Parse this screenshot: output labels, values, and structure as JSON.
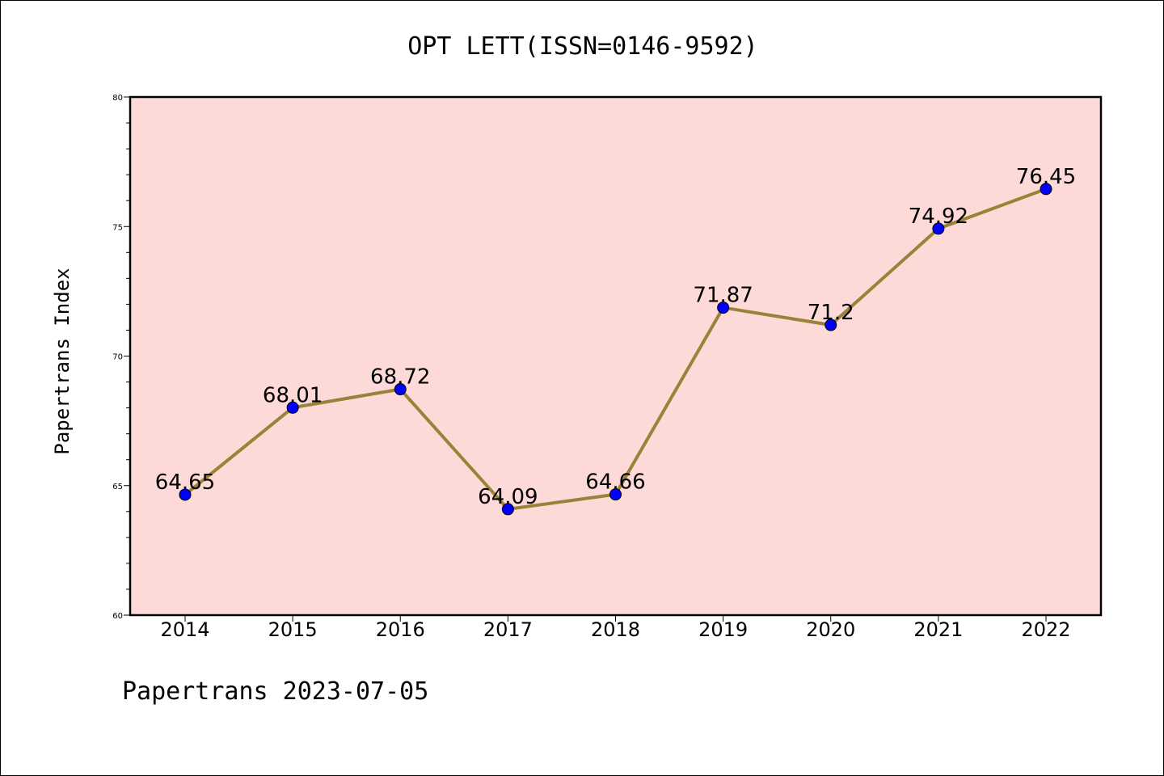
{
  "title": "OPT LETT(ISSN=0146-9592)",
  "footer": "Papertrans 2023-07-05",
  "colors": {
    "plot_background": "#fddad7",
    "line": "#9a8238",
    "marker": "#0000ff"
  },
  "chart_data": {
    "type": "line",
    "title": "OPT LETT(ISSN=0146-9592)",
    "xlabel": "",
    "ylabel": "Papertrans Index",
    "categories": [
      "2014",
      "2015",
      "2016",
      "2017",
      "2018",
      "2019",
      "2020",
      "2021",
      "2022"
    ],
    "values": [
      64.65,
      68.01,
      68.72,
      64.09,
      64.66,
      71.87,
      71.2,
      74.92,
      76.45
    ],
    "data_labels": [
      "64.65",
      "68.01",
      "68.72",
      "64.09",
      "64.66",
      "71.87",
      "71.2",
      "74.92",
      "76.45"
    ],
    "ylim": [
      60,
      80
    ],
    "yticks": [
      60,
      65,
      70,
      75,
      80
    ],
    "yminor_step": 1,
    "grid": false,
    "legend": "none"
  }
}
